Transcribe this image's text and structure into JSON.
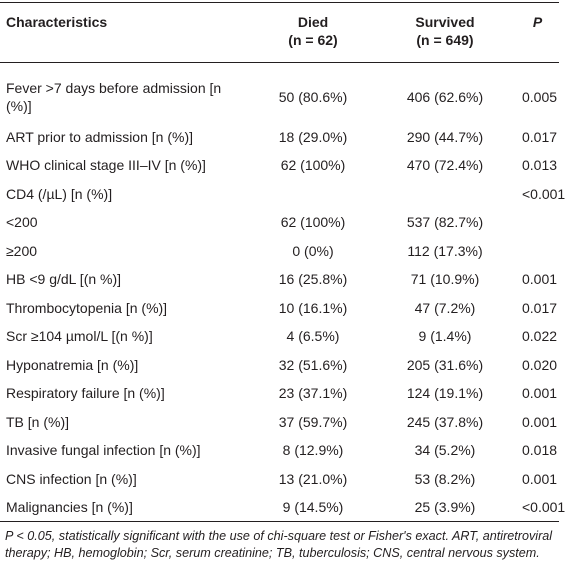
{
  "table": {
    "columns": [
      {
        "label": "Characteristics"
      },
      {
        "label": "Died",
        "sub": "(n = 62)"
      },
      {
        "label": "Survived",
        "sub": "(n = 649)"
      },
      {
        "label": "P"
      }
    ],
    "rows": [
      [
        "Fever >7 days before admission [n (%)]",
        "50 (80.6%)",
        "406 (62.6%)",
        "0.005"
      ],
      [
        "ART prior to admission [n (%)]",
        "18 (29.0%)",
        "290 (44.7%)",
        "0.017"
      ],
      [
        "WHO clinical stage III–IV [n (%)]",
        "62 (100%)",
        "470 (72.4%)",
        "0.013"
      ],
      [
        "CD4 (/µL) [n (%)]",
        null,
        null,
        "<0.001"
      ],
      [
        "<200",
        "62 (100%)",
        "537 (82.7%)",
        null
      ],
      [
        "≥200",
        "0 (0%)",
        "112 (17.3%)",
        null
      ],
      [
        "HB <9 g/dL [(n %)]",
        "16 (25.8%)",
        "71 (10.9%)",
        "0.001"
      ],
      [
        "Thrombocytopenia [n (%)]",
        "10 (16.1%)",
        "47 (7.2%)",
        "0.017"
      ],
      [
        "Scr ≥104 µmol/L [(n %)]",
        "4 (6.5%)",
        "9 (1.4%)",
        "0.022"
      ],
      [
        "Hyponatremia [n (%)]",
        "32 (51.6%)",
        "205 (31.6%)",
        "0.020"
      ],
      [
        "Respiratory failure [n (%)]",
        "23 (37.1%)",
        "124 (19.1%)",
        "0.001"
      ],
      [
        "TB [n (%)]",
        "37 (59.7%)",
        "245 (37.8%)",
        "0.001"
      ],
      [
        "Invasive fungal infection [n (%)]",
        "8 (12.9%)",
        "34 (5.2%)",
        "0.018"
      ],
      [
        "CNS infection [n (%)]",
        "13 (21.0%)",
        "53 (8.2%)",
        "0.001"
      ],
      [
        "Malignancies [n (%)]",
        "9 (14.5%)",
        "25 (3.9%)",
        "<0.001"
      ]
    ],
    "footnote": "P < 0.05, statistically significant with the use of chi-square test or Fisher's exact. ART, antiretroviral therapy; HB, hemoglobin; Scr, serum creatinine; TB, tuberculosis; CNS, central nervous system."
  }
}
